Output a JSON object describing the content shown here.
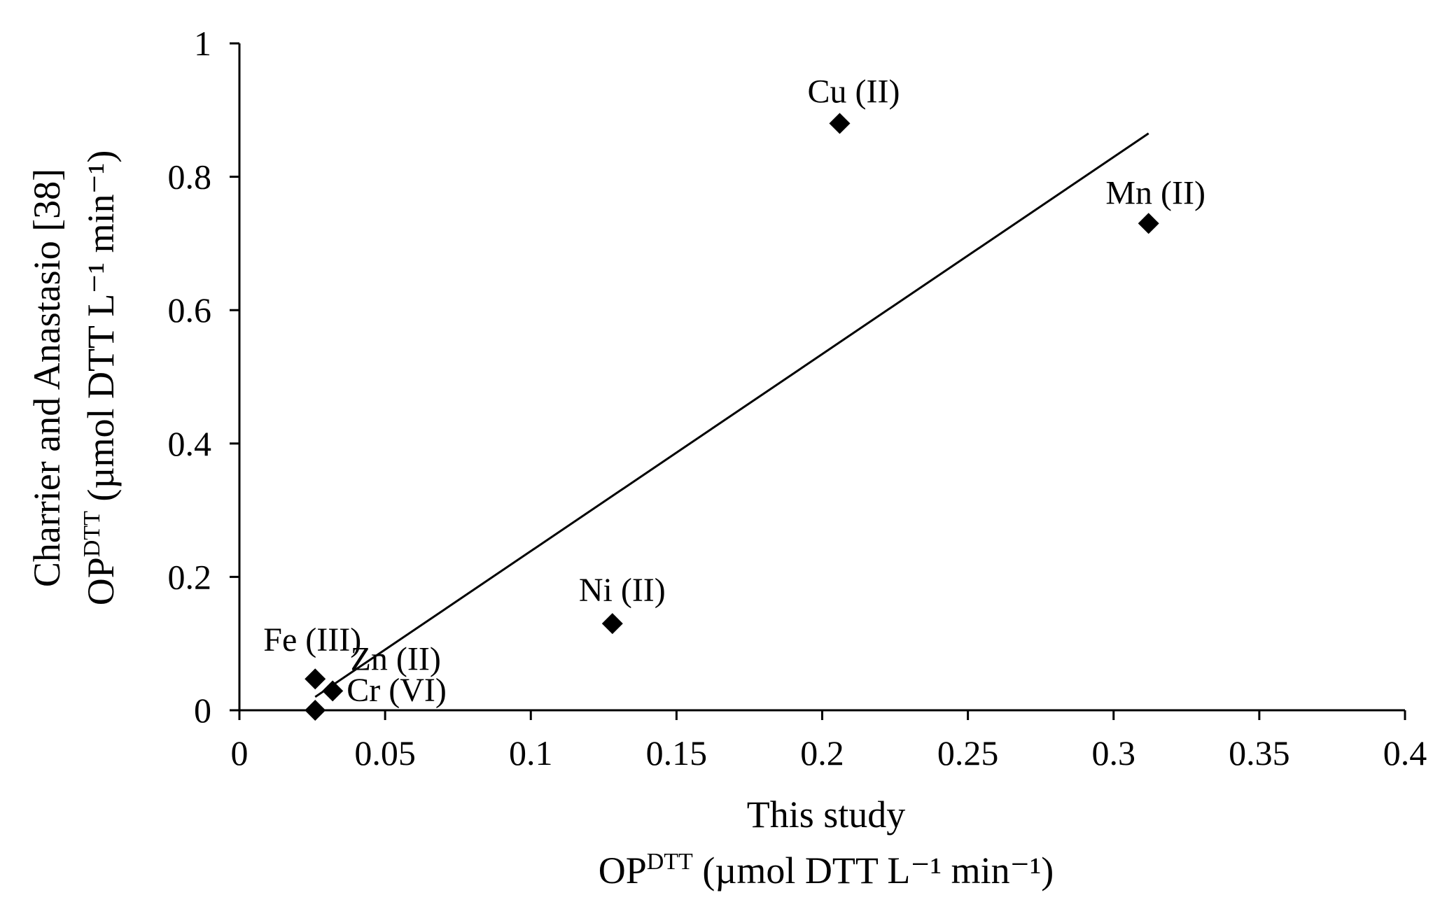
{
  "chart_data": {
    "type": "scatter",
    "title": "",
    "xlabel": {
      "line1": "This study",
      "line2_prefix": "OP",
      "line2_sup": "DTT",
      "line2_suffix": " (µmol DTT L⁻¹ min⁻¹)"
    },
    "ylabel": {
      "line1": "Charrier and Anastasio [38]",
      "line2_prefix": "OP",
      "line2_sup": "DTT",
      "line2_suffix": " (µmol DTT L⁻¹ min⁻¹)"
    },
    "xlim": [
      0,
      0.4
    ],
    "ylim": [
      0,
      1
    ],
    "x_ticks": [
      0,
      0.05,
      0.1,
      0.15,
      0.2,
      0.25,
      0.3,
      0.35,
      0.4
    ],
    "x_tick_labels": [
      "0",
      "0.05",
      "0.1",
      "0.15",
      "0.2",
      "0.25",
      "0.3",
      "0.35",
      "0.4"
    ],
    "y_ticks": [
      0,
      0.2,
      0.4,
      0.6,
      0.8,
      1
    ],
    "y_tick_labels": [
      "0",
      "0.2",
      "0.4",
      "0.6",
      "0.8",
      "1"
    ],
    "grid": false,
    "marker": "diamond",
    "marker_color": "#000000",
    "points": [
      {
        "label": "Cu (II)",
        "x": 0.206,
        "y": 0.88
      },
      {
        "label": "Mn (II)",
        "x": 0.312,
        "y": 0.73
      },
      {
        "label": "Ni (II)",
        "x": 0.128,
        "y": 0.13
      },
      {
        "label": "Fe (III)",
        "x": 0.026,
        "y": 0.047
      },
      {
        "label": "Zn (II)",
        "x": 0.032,
        "y": 0.029
      },
      {
        "label": "Cr (VI)",
        "x": 0.026,
        "y": 0.0
      }
    ],
    "trendline": {
      "x": [
        0.026,
        0.312
      ],
      "y": [
        0.02,
        0.865
      ]
    }
  }
}
